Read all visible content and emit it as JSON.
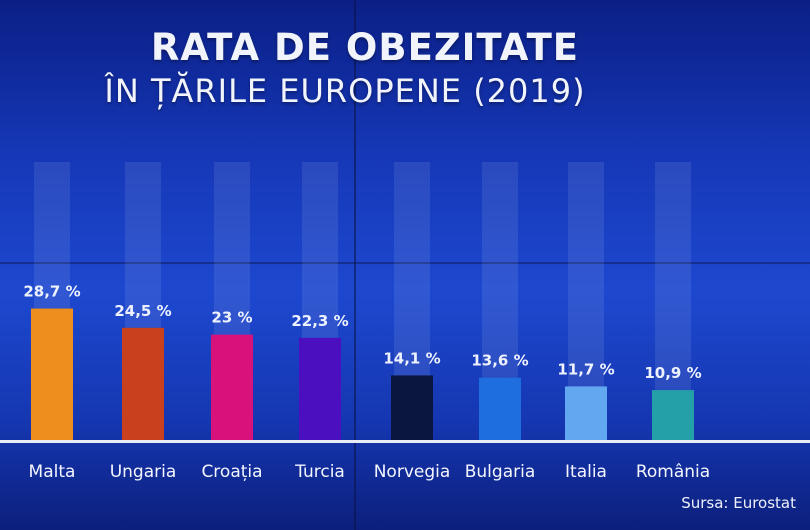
{
  "title_line1": "RATA DE OBEZITATE",
  "title_line2": "ÎN ȚĂRILE EUROPENE (2019)",
  "source": "Sursa: Eurostat",
  "chart_data": {
    "type": "bar",
    "title": "RATA DE OBEZITATE ÎN ȚĂRILE EUROPENE (2019)",
    "categories": [
      "Malta",
      "Ungaria",
      "Croația",
      "Turcia",
      "Norvegia",
      "Bulgaria",
      "Italia",
      "România"
    ],
    "values": [
      28.7,
      24.5,
      23,
      22.3,
      14.1,
      13.6,
      11.7,
      10.9
    ],
    "value_labels": [
      "28,7 %",
      "24,5 %",
      "23 %",
      "22,3 %",
      "14,1 %",
      "13,6 %",
      "11,7 %",
      "10,9 %"
    ],
    "colors": [
      "#ee8e1e",
      "#c9401e",
      "#d8127a",
      "#4b0fbf",
      "#0b1640",
      "#1f6ee0",
      "#62a8f0",
      "#23a0a8"
    ],
    "ylim": [
      0,
      60
    ],
    "grid": false
  }
}
